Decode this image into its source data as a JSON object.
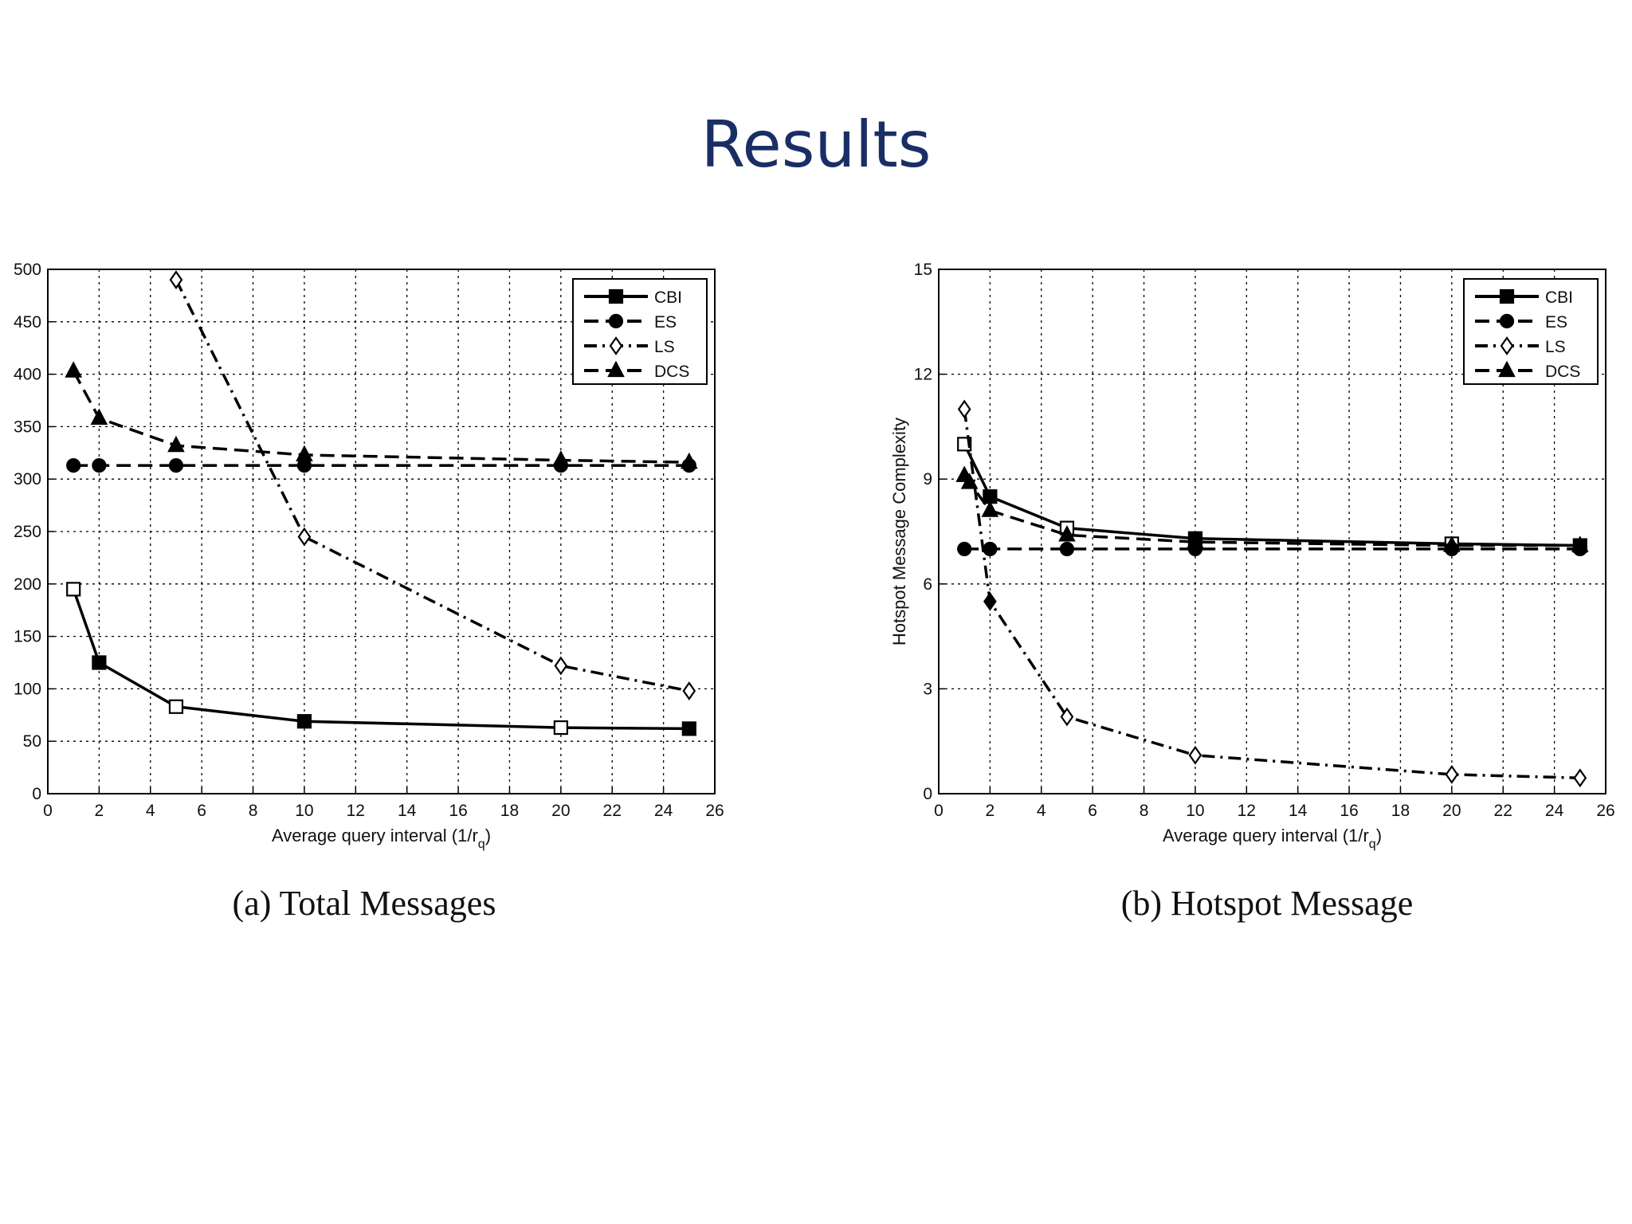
{
  "slide": {
    "title": "Results"
  },
  "colors": {
    "title": "#1a2e66",
    "lines": "#000000",
    "grid": "#000000"
  },
  "chart_data": [
    {
      "type": "line",
      "caption": "(a) Total Messages",
      "xlabel": "Average query interval (1/r",
      "xlabel_sub": "q",
      "xlabel_end": ")",
      "ylabel": "",
      "xlim": [
        0,
        26
      ],
      "ylim": [
        0,
        500
      ],
      "xticks": [
        0,
        2,
        4,
        6,
        8,
        10,
        12,
        14,
        16,
        18,
        20,
        22,
        24,
        26
      ],
      "yticks": [
        0,
        50,
        100,
        150,
        200,
        250,
        300,
        350,
        400,
        450,
        500
      ],
      "grid": true,
      "legend": "top-right",
      "series": [
        {
          "name": "CBI",
          "marker": "square",
          "dash": "solid",
          "x": [
            1,
            2,
            5,
            10,
            20,
            25
          ],
          "y": [
            195,
            125,
            83,
            69,
            63,
            62
          ]
        },
        {
          "name": "ES",
          "marker": "circle",
          "dash": "dashed",
          "x": [
            1,
            2,
            5,
            10,
            20,
            25
          ],
          "y": [
            313,
            313,
            313,
            313,
            313,
            313
          ]
        },
        {
          "name": "LS",
          "marker": "diamond",
          "dash": "dashdot",
          "x": [
            5,
            10,
            20,
            25
          ],
          "y": [
            490,
            245,
            122,
            98
          ]
        },
        {
          "name": "DCS",
          "marker": "triangle",
          "dash": "dashed",
          "x": [
            1,
            2,
            5,
            10,
            20,
            25
          ],
          "y": [
            403,
            358,
            332,
            323,
            318,
            316
          ]
        }
      ]
    },
    {
      "type": "line",
      "caption": "(b) Hotspot Message",
      "xlabel": "Average query interval (1/r",
      "xlabel_sub": "q",
      "xlabel_end": ")",
      "ylabel": "Hotspot Message Complexity",
      "xlim": [
        0,
        26
      ],
      "ylim": [
        0,
        15
      ],
      "xticks": [
        0,
        2,
        4,
        6,
        8,
        10,
        12,
        14,
        16,
        18,
        20,
        22,
        24,
        26
      ],
      "yticks": [
        0,
        3,
        6,
        9,
        12,
        15
      ],
      "grid": true,
      "legend": "top-right",
      "series": [
        {
          "name": "CBI",
          "marker": "square",
          "dash": "solid",
          "x": [
            1,
            2,
            5,
            10,
            20,
            25
          ],
          "y": [
            10,
            8.5,
            7.6,
            7.3,
            7.15,
            7.1
          ]
        },
        {
          "name": "ES",
          "marker": "circle",
          "dash": "dashed",
          "x": [
            1,
            2,
            5,
            10,
            20,
            25
          ],
          "y": [
            7,
            7,
            7,
            7,
            7,
            7
          ]
        },
        {
          "name": "LS",
          "marker": "diamond",
          "dash": "dashdot",
          "x": [
            1,
            2,
            5,
            10,
            20,
            25
          ],
          "y": [
            11,
            5.5,
            2.2,
            1.1,
            0.55,
            0.45
          ]
        },
        {
          "name": "DCS",
          "marker": "triangle",
          "dash": "dashed",
          "x": [
            1,
            1.2,
            2,
            5,
            10,
            20,
            25
          ],
          "y": [
            9.1,
            8.9,
            8.1,
            7.4,
            7.2,
            7.1,
            7.1
          ]
        }
      ]
    }
  ]
}
